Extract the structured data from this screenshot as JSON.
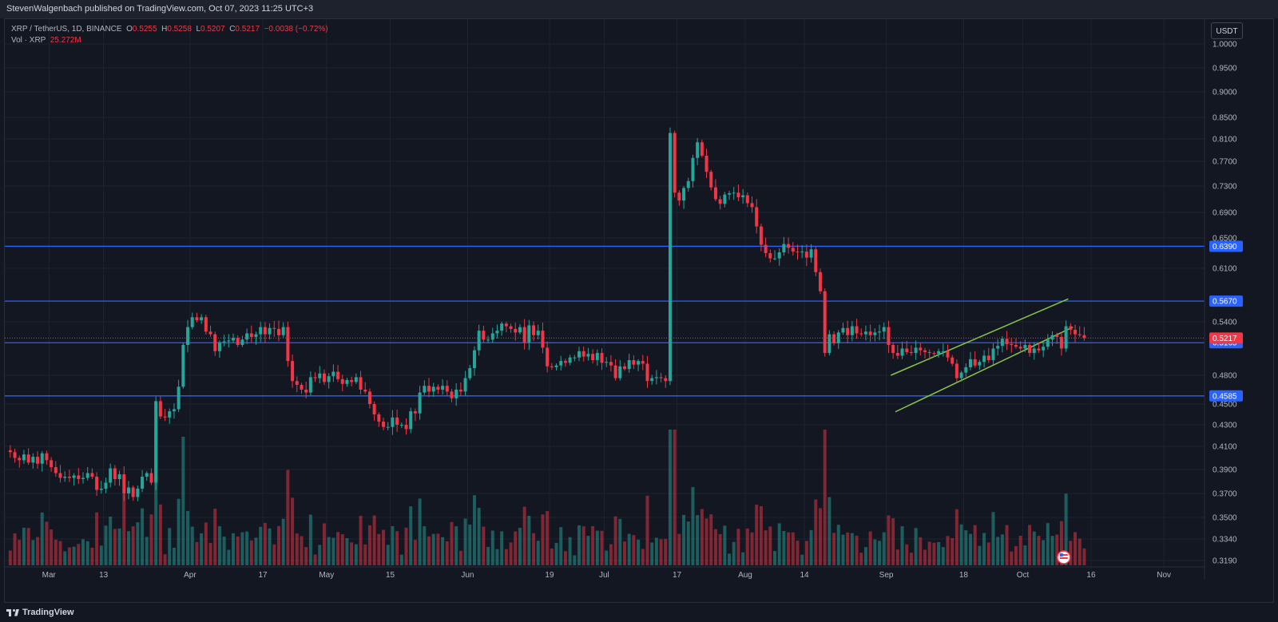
{
  "header": {
    "published_text": "StevenWalgenbach published on TradingView.com, Oct 07, 2023 11:25 UTC+3"
  },
  "legend": {
    "symbol": "XRP / TetherUS, 1D, BINANCE",
    "open_label": "O",
    "open": "0.5255",
    "high_label": "H",
    "high": "0.5258",
    "low_label": "L",
    "low": "0.5207",
    "close_label": "C",
    "close": "0.5217",
    "change": "−0.0038 (−0.72%)",
    "volume_label": "Vol · XRP",
    "volume": "25.272M"
  },
  "currency_button": "USDT",
  "footer": {
    "brand": "TradingView"
  },
  "colors": {
    "up": "#26a69a",
    "down": "#f23645",
    "level_line": "#2962ff",
    "channel": "#8bc34a",
    "background": "#131722",
    "grid": "#1f2330"
  },
  "chart_data": {
    "type": "candlestick",
    "title": "",
    "y_ticks": [
      "1.0000",
      "0.9500",
      "0.9000",
      "0.8500",
      "0.8100",
      "0.7700",
      "0.7300",
      "0.6900",
      "0.6500",
      "0.6100",
      "0.5400",
      "0.4800",
      "0.4500",
      "0.4300",
      "0.4100",
      "0.3900",
      "0.3700",
      "0.3500",
      "0.3340",
      "0.3190"
    ],
    "x_ticks": [
      "Mar",
      "13",
      "Apr",
      "17",
      "May",
      "15",
      "Jun",
      "19",
      "Jul",
      "17",
      "Aug",
      "14",
      "Sep",
      "18",
      "Oct",
      "16",
      "Nov"
    ],
    "x_range": [
      "2023-02-20",
      "2023-11-08"
    ],
    "horizontal_levels": [
      {
        "label": "0.6390",
        "value": 0.639
      },
      {
        "label": "0.5670",
        "value": 0.567
      },
      {
        "label": "0.5165",
        "value": 0.5165
      },
      {
        "label": "0.4585",
        "value": 0.4585
      }
    ],
    "current_price": {
      "label": "0.5217",
      "value": 0.5217
    },
    "channel_lines": [
      {
        "from": {
          "date": "2023-09-02",
          "price": 0.48
        },
        "to": {
          "date": "2023-10-11",
          "price": 0.57
        }
      },
      {
        "from": {
          "date": "2023-09-03",
          "price": 0.4425
        },
        "to": {
          "date": "2023-10-12",
          "price": 0.534
        }
      }
    ],
    "closes": [
      0.405,
      0.4,
      0.398,
      0.403,
      0.396,
      0.401,
      0.395,
      0.404,
      0.398,
      0.392,
      0.387,
      0.383,
      0.384,
      0.383,
      0.385,
      0.382,
      0.383,
      0.387,
      0.384,
      0.373,
      0.374,
      0.379,
      0.391,
      0.382,
      0.386,
      0.37,
      0.375,
      0.367,
      0.374,
      0.384,
      0.387,
      0.379,
      0.453,
      0.438,
      0.437,
      0.443,
      0.445,
      0.468,
      0.514,
      0.534,
      0.546,
      0.542,
      0.546,
      0.529,
      0.526,
      0.507,
      0.517,
      0.518,
      0.519,
      0.522,
      0.514,
      0.52,
      0.527,
      0.523,
      0.526,
      0.534,
      0.526,
      0.533,
      0.532,
      0.525,
      0.534,
      0.496,
      0.474,
      0.47,
      0.465,
      0.462,
      0.478,
      0.477,
      0.482,
      0.473,
      0.479,
      0.484,
      0.476,
      0.471,
      0.475,
      0.473,
      0.478,
      0.465,
      0.463,
      0.45,
      0.44,
      0.433,
      0.428,
      0.428,
      0.437,
      0.43,
      0.43,
      0.426,
      0.443,
      0.441,
      0.462,
      0.469,
      0.463,
      0.468,
      0.465,
      0.469,
      0.463,
      0.456,
      0.465,
      0.463,
      0.477,
      0.488,
      0.508,
      0.53,
      0.52,
      0.52,
      0.527,
      0.53,
      0.538,
      0.535,
      0.532,
      0.528,
      0.534,
      0.517,
      0.536,
      0.525,
      0.53,
      0.511,
      0.49,
      0.489,
      0.491,
      0.496,
      0.494,
      0.5,
      0.5,
      0.507,
      0.501,
      0.504,
      0.497,
      0.505,
      0.494,
      0.495,
      0.491,
      0.477,
      0.49,
      0.487,
      0.497,
      0.492,
      0.496,
      0.493,
      0.474,
      0.477,
      0.478,
      0.477,
      0.474,
      0.821,
      0.72,
      0.708,
      0.727,
      0.738,
      0.776,
      0.804,
      0.78,
      0.753,
      0.728,
      0.71,
      0.703,
      0.717,
      0.719,
      0.72,
      0.713,
      0.716,
      0.704,
      0.698,
      0.668,
      0.641,
      0.63,
      0.623,
      0.623,
      0.631,
      0.642,
      0.637,
      0.632,
      0.631,
      0.632,
      0.624,
      0.635,
      0.605,
      0.58,
      0.505,
      0.526,
      0.516,
      0.528,
      0.533,
      0.525,
      0.535,
      0.527,
      0.526,
      0.529,
      0.525,
      0.528,
      0.529,
      0.534,
      0.514,
      0.505,
      0.502,
      0.51,
      0.506,
      0.505,
      0.511,
      0.508,
      0.506,
      0.505,
      0.504,
      0.507,
      0.507,
      0.5,
      0.493,
      0.477,
      0.483,
      0.489,
      0.498,
      0.491,
      0.495,
      0.502,
      0.497,
      0.51,
      0.513,
      0.521,
      0.515,
      0.514,
      0.512,
      0.51,
      0.514,
      0.505,
      0.51,
      0.508,
      0.512,
      0.52,
      0.525,
      0.523,
      0.51,
      0.535,
      0.531,
      0.526,
      0.525,
      0.522
    ]
  }
}
